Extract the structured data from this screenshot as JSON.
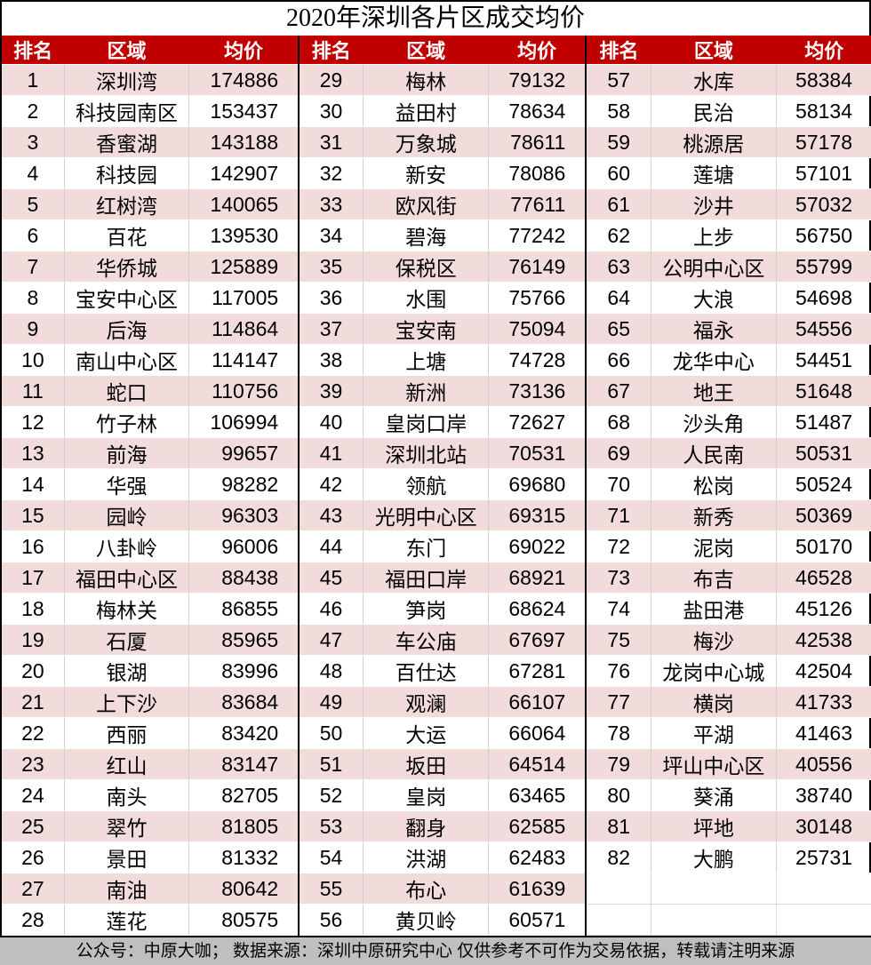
{
  "title": "2020年深圳各片区成交均价",
  "headers": {
    "rank": "排名",
    "area": "区域",
    "price": "均价"
  },
  "colors": {
    "header_bg": "#c00000",
    "stripe": "#f2dcdb",
    "footer_bg": "#bfbfbf"
  },
  "columns": [
    [
      [
        "1",
        "深圳湾",
        "174886"
      ],
      [
        "2",
        "科技园南区",
        "153437"
      ],
      [
        "3",
        "香蜜湖",
        "143188"
      ],
      [
        "4",
        "科技园",
        "142907"
      ],
      [
        "5",
        "红树湾",
        "140065"
      ],
      [
        "6",
        "百花",
        "139530"
      ],
      [
        "7",
        "华侨城",
        "125889"
      ],
      [
        "8",
        "宝安中心区",
        "117005"
      ],
      [
        "9",
        "后海",
        "114864"
      ],
      [
        "10",
        "南山中心区",
        "114147"
      ],
      [
        "11",
        "蛇口",
        "110756"
      ],
      [
        "12",
        "竹子林",
        "106994"
      ],
      [
        "13",
        "前海",
        "99657"
      ],
      [
        "14",
        "华强",
        "98282"
      ],
      [
        "15",
        "园岭",
        "96303"
      ],
      [
        "16",
        "八卦岭",
        "96006"
      ],
      [
        "17",
        "福田中心区",
        "88438"
      ],
      [
        "18",
        "梅林关",
        "86855"
      ],
      [
        "19",
        "石厦",
        "85965"
      ],
      [
        "20",
        "银湖",
        "83996"
      ],
      [
        "21",
        "上下沙",
        "83684"
      ],
      [
        "22",
        "西丽",
        "83420"
      ],
      [
        "23",
        "红山",
        "83147"
      ],
      [
        "24",
        "南头",
        "82705"
      ],
      [
        "25",
        "翠竹",
        "81805"
      ],
      [
        "26",
        "景田",
        "81332"
      ],
      [
        "27",
        "南油",
        "80642"
      ],
      [
        "28",
        "莲花",
        "80575"
      ]
    ],
    [
      [
        "29",
        "梅林",
        "79132"
      ],
      [
        "30",
        "益田村",
        "78634"
      ],
      [
        "31",
        "万象城",
        "78611"
      ],
      [
        "32",
        "新安",
        "78086"
      ],
      [
        "33",
        "欧风街",
        "77611"
      ],
      [
        "34",
        "碧海",
        "77242"
      ],
      [
        "35",
        "保税区",
        "76149"
      ],
      [
        "36",
        "水围",
        "75766"
      ],
      [
        "37",
        "宝安南",
        "75094"
      ],
      [
        "38",
        "上塘",
        "74728"
      ],
      [
        "39",
        "新洲",
        "73136"
      ],
      [
        "40",
        "皇岗口岸",
        "72627"
      ],
      [
        "41",
        "深圳北站",
        "70531"
      ],
      [
        "42",
        "领航",
        "69680"
      ],
      [
        "43",
        "光明中心区",
        "69315"
      ],
      [
        "44",
        "东门",
        "69022"
      ],
      [
        "45",
        "福田口岸",
        "68921"
      ],
      [
        "46",
        "笋岗",
        "68624"
      ],
      [
        "47",
        "车公庙",
        "67697"
      ],
      [
        "48",
        "百仕达",
        "67281"
      ],
      [
        "49",
        "观澜",
        "66107"
      ],
      [
        "50",
        "大运",
        "66064"
      ],
      [
        "51",
        "坂田",
        "64514"
      ],
      [
        "52",
        "皇岗",
        "63465"
      ],
      [
        "53",
        "翻身",
        "62585"
      ],
      [
        "54",
        "洪湖",
        "62483"
      ],
      [
        "55",
        "布心",
        "61639"
      ],
      [
        "56",
        "黄贝岭",
        "60571"
      ]
    ],
    [
      [
        "57",
        "水库",
        "58384"
      ],
      [
        "58",
        "民治",
        "58134"
      ],
      [
        "59",
        "桃源居",
        "57178"
      ],
      [
        "60",
        "莲塘",
        "57101"
      ],
      [
        "61",
        "沙井",
        "57032"
      ],
      [
        "62",
        "上步",
        "56750"
      ],
      [
        "63",
        "公明中心区",
        "55799"
      ],
      [
        "64",
        "大浪",
        "54698"
      ],
      [
        "65",
        "福永",
        "54556"
      ],
      [
        "66",
        "龙华中心",
        "54451"
      ],
      [
        "67",
        "地王",
        "51648"
      ],
      [
        "68",
        "沙头角",
        "51487"
      ],
      [
        "69",
        "人民南",
        "50531"
      ],
      [
        "70",
        "松岗",
        "50524"
      ],
      [
        "71",
        "新秀",
        "50369"
      ],
      [
        "72",
        "泥岗",
        "50170"
      ],
      [
        "73",
        "布吉",
        "46528"
      ],
      [
        "74",
        "盐田港",
        "45126"
      ],
      [
        "75",
        "梅沙",
        "42538"
      ],
      [
        "76",
        "龙岗中心城",
        "42504"
      ],
      [
        "77",
        "横岗",
        "41733"
      ],
      [
        "78",
        "平湖",
        "41463"
      ],
      [
        "79",
        "坪山中心区",
        "40556"
      ],
      [
        "80",
        "葵涌",
        "38740"
      ],
      [
        "81",
        "坪地",
        "30148"
      ],
      [
        "82",
        "大鹏",
        "25731"
      ]
    ]
  ],
  "footer": "公众号：中原大咖；  数据来源：深圳中原研究中心 仅供参考不可作为交易依据，转载请注明来源"
}
